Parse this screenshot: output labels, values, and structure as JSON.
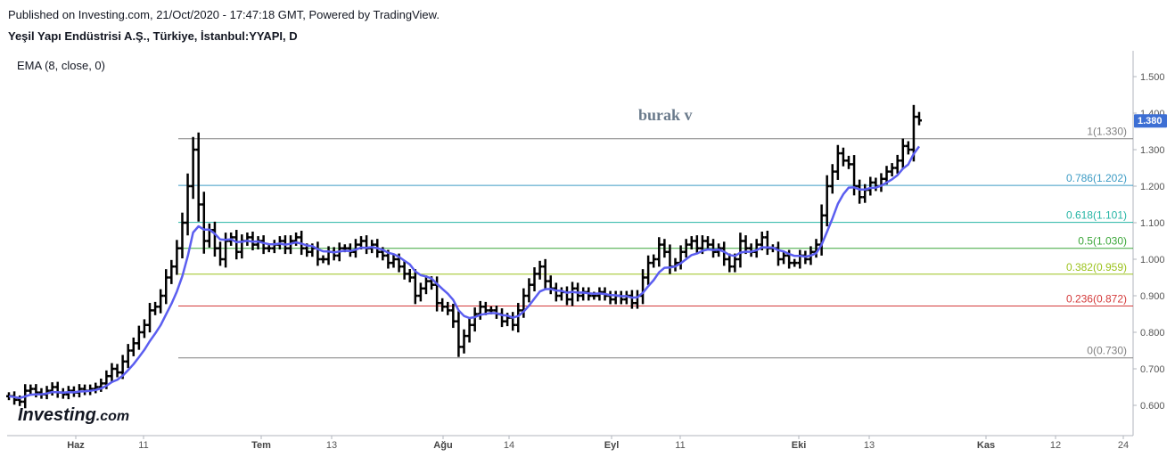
{
  "header": {
    "published": "Published on Investing.com, 21/Oct/2020 - 17:47:18 GMT, Powered by TradingView.",
    "symbol": "Yeşil Yapı Endüstrisi A.Ş., Türkiye, İstanbul:YYAPI, D"
  },
  "indicator_label": "EMA (8, close, 0)",
  "watermark": "burak v",
  "logo": {
    "main": "Investing",
    "suffix": ".com"
  },
  "colors": {
    "bars": "#000000",
    "ema": "#5b5ef0",
    "price_tag": "#3d6fd4",
    "fib_1": "#808080",
    "fib_0786": "#3c9bc4",
    "fib_0618": "#26b5a5",
    "fib_05": "#3aa638",
    "fib_0382": "#9bc21c",
    "fib_0236": "#d43a3a",
    "fib_0": "#808080"
  },
  "chart_data": {
    "type": "ohlc",
    "price_axis": {
      "min": 0.55,
      "max": 1.55,
      "ticks": [
        "0.600",
        "0.700",
        "0.800",
        "0.900",
        "1.000",
        "1.100",
        "1.200",
        "1.300",
        "1.400",
        "1.500"
      ]
    },
    "x_labels": [
      {
        "label": "Haz",
        "month": true
      },
      {
        "label": "11",
        "month": false
      },
      {
        "label": "Tem",
        "month": true
      },
      {
        "label": "13",
        "month": false
      },
      {
        "label": "Ağu",
        "month": true
      },
      {
        "label": "14",
        "month": false
      },
      {
        "label": "Eyl",
        "month": true
      },
      {
        "label": "11",
        "month": false
      },
      {
        "label": "Eki",
        "month": true
      },
      {
        "label": "13",
        "month": false
      },
      {
        "label": "Kas",
        "month": true
      },
      {
        "label": "12",
        "month": false
      },
      {
        "label": "24",
        "month": false
      }
    ],
    "last_price": "1.380",
    "fib_levels": [
      {
        "ratio": "1",
        "price": 1.33,
        "label": "1(1.330)",
        "color": "#808080"
      },
      {
        "ratio": "0.786",
        "price": 1.202,
        "label": "0.786(1.202)",
        "color": "#3c9bc4"
      },
      {
        "ratio": "0.618",
        "price": 1.101,
        "label": "0.618(1.101)",
        "color": "#26b5a5"
      },
      {
        "ratio": "0.5",
        "price": 1.03,
        "label": "0.5(1.030)",
        "color": "#3aa638"
      },
      {
        "ratio": "0.382",
        "price": 0.959,
        "label": "0.382(0.959)",
        "color": "#9bc21c"
      },
      {
        "ratio": "0.236",
        "price": 0.872,
        "label": "0.236(0.872)",
        "color": "#d43a3a"
      },
      {
        "ratio": "0",
        "price": 0.73,
        "label": "0(0.730)",
        "color": "#808080"
      }
    ],
    "closes": [
      0.625,
      0.615,
      0.61,
      0.64,
      0.645,
      0.635,
      0.63,
      0.64,
      0.65,
      0.635,
      0.63,
      0.64,
      0.635,
      0.645,
      0.64,
      0.645,
      0.65,
      0.66,
      0.68,
      0.7,
      0.69,
      0.72,
      0.75,
      0.77,
      0.8,
      0.82,
      0.86,
      0.87,
      0.9,
      0.95,
      0.98,
      1.03,
      1.1,
      1.2,
      1.3,
      1.15,
      1.05,
      1.08,
      1.03,
      1.0,
      1.05,
      1.06,
      1.02,
      1.05,
      1.06,
      1.04,
      1.05,
      1.03,
      1.03,
      1.04,
      1.05,
      1.03,
      1.05,
      1.06,
      1.03,
      1.02,
      1.03,
      1.0,
      1.0,
      1.02,
      1.01,
      1.03,
      1.03,
      1.02,
      1.04,
      1.05,
      1.03,
      1.04,
      1.02,
      1.01,
      0.99,
      1.0,
      0.98,
      0.96,
      0.95,
      0.9,
      0.92,
      0.94,
      0.93,
      0.88,
      0.87,
      0.86,
      0.83,
      0.76,
      0.79,
      0.82,
      0.85,
      0.87,
      0.86,
      0.86,
      0.85,
      0.83,
      0.84,
      0.82,
      0.86,
      0.9,
      0.93,
      0.96,
      0.98,
      0.94,
      0.92,
      0.9,
      0.91,
      0.89,
      0.92,
      0.9,
      0.91,
      0.9,
      0.9,
      0.91,
      0.9,
      0.89,
      0.9,
      0.89,
      0.9,
      0.88,
      0.9,
      0.95,
      0.99,
      1.0,
      1.04,
      1.02,
      0.98,
      0.99,
      1.02,
      1.04,
      1.05,
      1.03,
      1.05,
      1.04,
      1.02,
      1.03,
      1.0,
      0.98,
      1.0,
      1.05,
      1.03,
      1.02,
      1.04,
      1.06,
      1.03,
      1.03,
      1.0,
      1.01,
      0.99,
      0.99,
      1.01,
      1.0,
      1.02,
      1.04,
      1.12,
      1.2,
      1.24,
      1.29,
      1.27,
      1.26,
      1.2,
      1.17,
      1.19,
      1.21,
      1.2,
      1.22,
      1.24,
      1.25,
      1.27,
      1.31,
      1.3,
      1.39,
      1.38
    ],
    "ema_period": 8
  }
}
